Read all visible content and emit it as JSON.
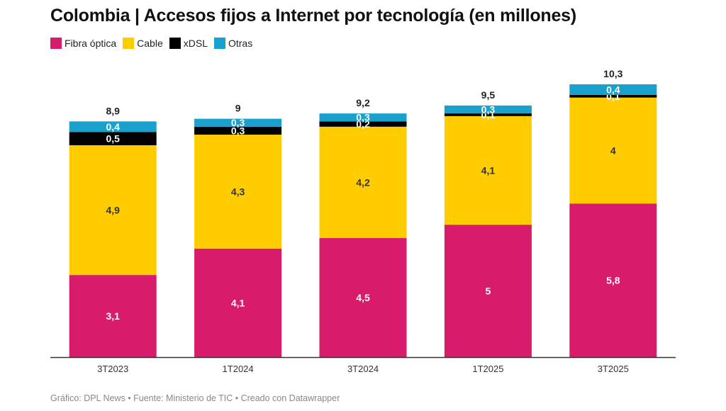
{
  "chart_data": {
    "type": "bar",
    "stacked": true,
    "title": "Colombia | Accesos fijos a Internet por tecnología (en millones)",
    "xlabel": "",
    "ylabel": "",
    "categories": [
      "3T2023",
      "1T2024",
      "3T2024",
      "1T2025",
      "3T2025"
    ],
    "series": [
      {
        "name": "Fibra óptica",
        "color": "#d81b6a",
        "values": [
          3.1,
          4.1,
          4.5,
          5.0,
          5.8
        ],
        "labels": [
          "3,1",
          "4,1",
          "4,5",
          "5",
          "5,8"
        ]
      },
      {
        "name": "Cable",
        "color": "#ffcc00",
        "values": [
          4.9,
          4.3,
          4.2,
          4.1,
          4.0
        ],
        "labels": [
          "4,9",
          "4,3",
          "4,2",
          "4,1",
          "4"
        ]
      },
      {
        "name": "xDSL",
        "color": "#000000",
        "values": [
          0.5,
          0.3,
          0.2,
          0.1,
          0.1
        ],
        "labels": [
          "0,5",
          "0,3",
          "0,2",
          "0,1",
          "0,1"
        ]
      },
      {
        "name": "Otras",
        "color": "#18a1cd",
        "values": [
          0.4,
          0.3,
          0.3,
          0.3,
          0.4
        ],
        "labels": [
          "0,4",
          "0,3",
          "0,3",
          "0,3",
          "0,4"
        ]
      }
    ],
    "totals": [
      8.9,
      9.0,
      9.2,
      9.5,
      10.3
    ],
    "total_labels": [
      "8,9",
      "9",
      "9,2",
      "9,5",
      "10,3"
    ],
    "ylim": [
      0,
      10.3
    ],
    "grid": false,
    "legend_position": "top-left"
  },
  "footer": "Gráfico: DPL News • Fuente: Ministerio de TIC • Creado con Datawrapper"
}
